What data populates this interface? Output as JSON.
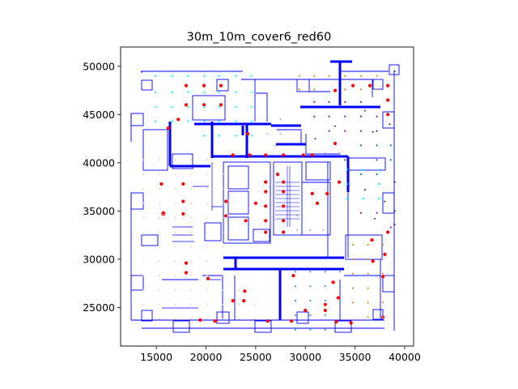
{
  "chart_data": {
    "type": "scatter",
    "title": "30m_10m_cover6_red60",
    "xlabel": "",
    "ylabel": "",
    "xlim": [
      11400,
      40900
    ],
    "ylim": [
      21000,
      52000
    ],
    "x_ticks": [
      15000,
      20000,
      25000,
      30000,
      35000,
      40000
    ],
    "x_tick_labels": [
      "15000",
      "20000",
      "25000",
      "30000",
      "35000",
      "40000"
    ],
    "y_ticks": [
      25000,
      30000,
      35000,
      40000,
      45000,
      50000
    ],
    "y_tick_labels": [
      "25000",
      "30000",
      "35000",
      "40000",
      "45000",
      "50000"
    ],
    "grid": false,
    "legend": "none",
    "colors": {
      "floorplan": "#0000ff",
      "red_points": "#ff0000",
      "cyan_points": "#00ffff",
      "tan_points": "#f0c8a0",
      "steelblue_points": "#4a90d9",
      "purple_points": "#7b1fa2",
      "teal_points": "#008080",
      "orange_points": "#e08a2e",
      "gray_points": "#a0a0a0",
      "black_points": "#000000"
    },
    "series": [
      {
        "color": "red_points",
        "marker": "filled-large",
        "points": [
          [
            18000,
            48000
          ],
          [
            19800,
            48000
          ],
          [
            21500,
            48000
          ],
          [
            33000,
            47500
          ],
          [
            34800,
            48000
          ],
          [
            36500,
            48000
          ],
          [
            38300,
            48000
          ],
          [
            18000,
            46000
          ],
          [
            19800,
            46000
          ],
          [
            21500,
            46000
          ],
          [
            38300,
            46500
          ],
          [
            38300,
            45000
          ],
          [
            17200,
            44500
          ],
          [
            16200,
            43600
          ],
          [
            24200,
            43000
          ],
          [
            33000,
            42000
          ],
          [
            22700,
            40800
          ],
          [
            24400,
            40800
          ],
          [
            26000,
            40800
          ],
          [
            27800,
            40800
          ],
          [
            29800,
            40800
          ],
          [
            30700,
            40800
          ],
          [
            27200,
            38800
          ],
          [
            26000,
            38000
          ],
          [
            27800,
            38000
          ],
          [
            33400,
            38000
          ],
          [
            15500,
            37800
          ],
          [
            17700,
            37800
          ],
          [
            26000,
            37000
          ],
          [
            27800,
            37000
          ],
          [
            30700,
            36800
          ],
          [
            32200,
            36800
          ],
          [
            17700,
            36000
          ],
          [
            22000,
            36000
          ],
          [
            25000,
            35800
          ],
          [
            26000,
            35500
          ],
          [
            27800,
            35500
          ],
          [
            31200,
            35800
          ],
          [
            15700,
            34800
          ],
          [
            17700,
            34700
          ],
          [
            22000,
            34500
          ],
          [
            24000,
            34000
          ],
          [
            26000,
            34000
          ],
          [
            27800,
            34000
          ],
          [
            26000,
            32800
          ],
          [
            27800,
            32800
          ],
          [
            38300,
            32800
          ],
          [
            36700,
            32000
          ],
          [
            38000,
            30500
          ],
          [
            36800,
            29800
          ],
          [
            18000,
            29600
          ],
          [
            18000,
            28600
          ],
          [
            20200,
            28000
          ],
          [
            37800,
            28200
          ],
          [
            23900,
            26700
          ],
          [
            28800,
            28300
          ],
          [
            32800,
            27600
          ],
          [
            33300,
            26000
          ],
          [
            32000,
            25300
          ],
          [
            22700,
            25700
          ],
          [
            23800,
            25700
          ],
          [
            30000,
            24700
          ],
          [
            32000,
            24700
          ],
          [
            37800,
            24000
          ],
          [
            19400,
            23700
          ],
          [
            20900,
            23600
          ],
          [
            26200,
            23600
          ],
          [
            28600,
            23600
          ],
          [
            33100,
            23500
          ],
          [
            34600,
            23400
          ]
        ]
      },
      {
        "color": "cyan_points",
        "marker": "small",
        "points": [
          [
            14900,
            49000
          ],
          [
            16600,
            49000
          ],
          [
            18200,
            49000
          ],
          [
            19800,
            49000
          ],
          [
            21300,
            49000
          ],
          [
            23000,
            49000
          ],
          [
            24600,
            49000
          ],
          [
            14900,
            47300
          ],
          [
            16600,
            47300
          ],
          [
            18200,
            47300
          ],
          [
            19800,
            47300
          ],
          [
            21300,
            47300
          ],
          [
            23000,
            47300
          ],
          [
            24600,
            47300
          ],
          [
            14900,
            45800
          ],
          [
            16600,
            45800
          ],
          [
            18200,
            45800
          ],
          [
            19800,
            45800
          ],
          [
            21300,
            45800
          ],
          [
            23000,
            45800
          ],
          [
            24600,
            45800
          ],
          [
            14900,
            44300
          ],
          [
            16600,
            44300
          ],
          [
            18200,
            44300
          ],
          [
            19800,
            44300
          ],
          [
            21300,
            44300
          ],
          [
            23000,
            44300
          ],
          [
            24600,
            44300
          ],
          [
            19800,
            42800
          ],
          [
            21300,
            42800
          ],
          [
            23000,
            42800
          ],
          [
            24600,
            42800
          ],
          [
            34200,
            39300
          ],
          [
            35800,
            39300
          ],
          [
            37400,
            39300
          ],
          [
            34200,
            37800
          ],
          [
            37400,
            37800
          ],
          [
            34200,
            36300
          ],
          [
            35800,
            36300
          ],
          [
            37400,
            36300
          ]
        ]
      },
      {
        "color": "tan_points",
        "marker": "tiny",
        "points": [
          [
            13700,
            40300
          ],
          [
            15300,
            40300
          ],
          [
            16900,
            40300
          ],
          [
            18500,
            40300
          ],
          [
            20100,
            40300
          ],
          [
            13700,
            38800
          ],
          [
            15300,
            38800
          ],
          [
            16900,
            38800
          ],
          [
            18500,
            38800
          ],
          [
            20100,
            38800
          ],
          [
            21700,
            38800
          ],
          [
            13700,
            37300
          ],
          [
            15300,
            37300
          ],
          [
            16900,
            37300
          ],
          [
            18500,
            37300
          ],
          [
            20100,
            37300
          ],
          [
            21700,
            37300
          ],
          [
            13700,
            35800
          ],
          [
            15300,
            35800
          ],
          [
            16900,
            35800
          ],
          [
            18500,
            35800
          ],
          [
            20100,
            35800
          ],
          [
            21700,
            35800
          ],
          [
            13700,
            34300
          ],
          [
            15300,
            34300
          ],
          [
            16900,
            34300
          ],
          [
            18500,
            34300
          ],
          [
            20100,
            34300
          ],
          [
            21700,
            34300
          ],
          [
            13700,
            32800
          ],
          [
            15300,
            32800
          ],
          [
            16900,
            32800
          ],
          [
            18500,
            32800
          ],
          [
            20100,
            32800
          ],
          [
            21700,
            32800
          ],
          [
            13700,
            31300
          ],
          [
            15300,
            31300
          ],
          [
            16900,
            31300
          ],
          [
            18500,
            31300
          ],
          [
            20100,
            31300
          ],
          [
            21700,
            31300
          ],
          [
            13700,
            29800
          ],
          [
            15300,
            29800
          ],
          [
            16900,
            29800
          ],
          [
            18500,
            29800
          ],
          [
            20100,
            29800
          ],
          [
            21700,
            29800
          ],
          [
            13700,
            28300
          ],
          [
            15300,
            28300
          ],
          [
            16900,
            28300
          ],
          [
            18500,
            28300
          ],
          [
            20100,
            28300
          ],
          [
            21700,
            28300
          ],
          [
            13700,
            26800
          ],
          [
            15300,
            26800
          ],
          [
            16900,
            26800
          ],
          [
            18500,
            26800
          ],
          [
            20100,
            26800
          ],
          [
            21700,
            26800
          ],
          [
            23300,
            26800
          ],
          [
            13700,
            25300
          ],
          [
            15300,
            25300
          ],
          [
            16900,
            25300
          ],
          [
            18500,
            25300
          ],
          [
            20100,
            25300
          ],
          [
            21700,
            25300
          ],
          [
            23300,
            25300
          ],
          [
            24900,
            25300
          ],
          [
            15300,
            23800
          ],
          [
            16900,
            23800
          ],
          [
            18500,
            23800
          ],
          [
            20100,
            23800
          ],
          [
            21700,
            23800
          ],
          [
            23300,
            23800
          ],
          [
            24900,
            23800
          ]
        ]
      },
      {
        "color": "steelblue_points",
        "marker": "small",
        "points": [
          [
            29000,
            28700
          ],
          [
            30500,
            28700
          ],
          [
            32000,
            28700
          ],
          [
            33500,
            28700
          ],
          [
            29000,
            27200
          ],
          [
            30500,
            27200
          ],
          [
            32000,
            27200
          ],
          [
            33500,
            27200
          ],
          [
            29000,
            25700
          ],
          [
            30500,
            25700
          ],
          [
            32000,
            25700
          ],
          [
            33500,
            25700
          ],
          [
            29000,
            24200
          ],
          [
            30500,
            24200
          ],
          [
            32000,
            24200
          ],
          [
            33500,
            24200
          ],
          [
            29000,
            22700
          ],
          [
            30500,
            22700
          ],
          [
            32000,
            22700
          ]
        ]
      },
      {
        "color": "purple_points",
        "marker": "small",
        "points": [
          [
            30900,
            46300
          ],
          [
            32400,
            46300
          ],
          [
            34000,
            46300
          ],
          [
            35600,
            46300
          ],
          [
            30900,
            44800
          ],
          [
            32400,
            44800
          ],
          [
            34000,
            44800
          ],
          [
            35600,
            44800
          ],
          [
            37200,
            44800
          ],
          [
            32400,
            43300
          ],
          [
            34000,
            43300
          ],
          [
            35600,
            43300
          ],
          [
            37200,
            43300
          ],
          [
            34000,
            40300
          ],
          [
            37200,
            40300
          ],
          [
            35600,
            34800
          ],
          [
            37200,
            34800
          ],
          [
            38600,
            33300
          ]
        ]
      },
      {
        "color": "teal_points",
        "marker": "small",
        "points": [
          [
            35600,
            41800
          ],
          [
            37200,
            41800
          ],
          [
            38600,
            41800
          ],
          [
            38600,
            40300
          ],
          [
            35600,
            38800
          ],
          [
            37200,
            38800
          ]
        ]
      },
      {
        "color": "orange_points",
        "marker": "small",
        "points": [
          [
            29400,
            49000
          ],
          [
            30900,
            49000
          ],
          [
            32400,
            49000
          ],
          [
            34000,
            49000
          ],
          [
            35600,
            49000
          ],
          [
            37200,
            49000
          ],
          [
            29400,
            47600
          ],
          [
            30900,
            47600
          ],
          [
            34000,
            47600
          ],
          [
            35600,
            47600
          ],
          [
            37200,
            47600
          ],
          [
            34800,
            31500
          ],
          [
            36300,
            31500
          ],
          [
            37800,
            31500
          ],
          [
            34800,
            30000
          ],
          [
            36300,
            30000
          ],
          [
            34800,
            28500
          ],
          [
            36300,
            28500
          ],
          [
            37800,
            28500
          ],
          [
            34800,
            27000
          ],
          [
            36300,
            27000
          ],
          [
            37800,
            27000
          ],
          [
            34800,
            25500
          ],
          [
            36300,
            25500
          ],
          [
            37800,
            25500
          ],
          [
            36300,
            24000
          ],
          [
            37800,
            24000
          ]
        ]
      },
      {
        "color": "gray_points",
        "marker": "tiny",
        "points": [
          [
            26200,
            44500
          ],
          [
            26200,
            43000
          ],
          [
            27500,
            44500
          ],
          [
            27500,
            43000
          ],
          [
            27000,
            41800
          ],
          [
            28500,
            41800
          ],
          [
            32000,
            41000
          ],
          [
            33500,
            41000
          ],
          [
            29200,
            34500
          ],
          [
            29200,
            33000
          ],
          [
            30500,
            33000
          ],
          [
            31800,
            33000
          ]
        ]
      },
      {
        "color": "black_points",
        "marker": "tiny",
        "points": [
          [
            31000,
            42500
          ],
          [
            36800,
            43200
          ],
          [
            38500,
            44000
          ],
          [
            39000,
            38000
          ],
          [
            38000,
            36000
          ],
          [
            39000,
            35000
          ],
          [
            37000,
            34200
          ],
          [
            39000,
            33600
          ],
          [
            36000,
            37200
          ],
          [
            33000,
            43800
          ],
          [
            36000,
            45400
          ],
          [
            39000,
            49500
          ]
        ]
      },
      {
        "color": "red_points",
        "marker": "hollow",
        "points": [
          [
            15700,
            34700
          ]
        ]
      }
    ]
  }
}
